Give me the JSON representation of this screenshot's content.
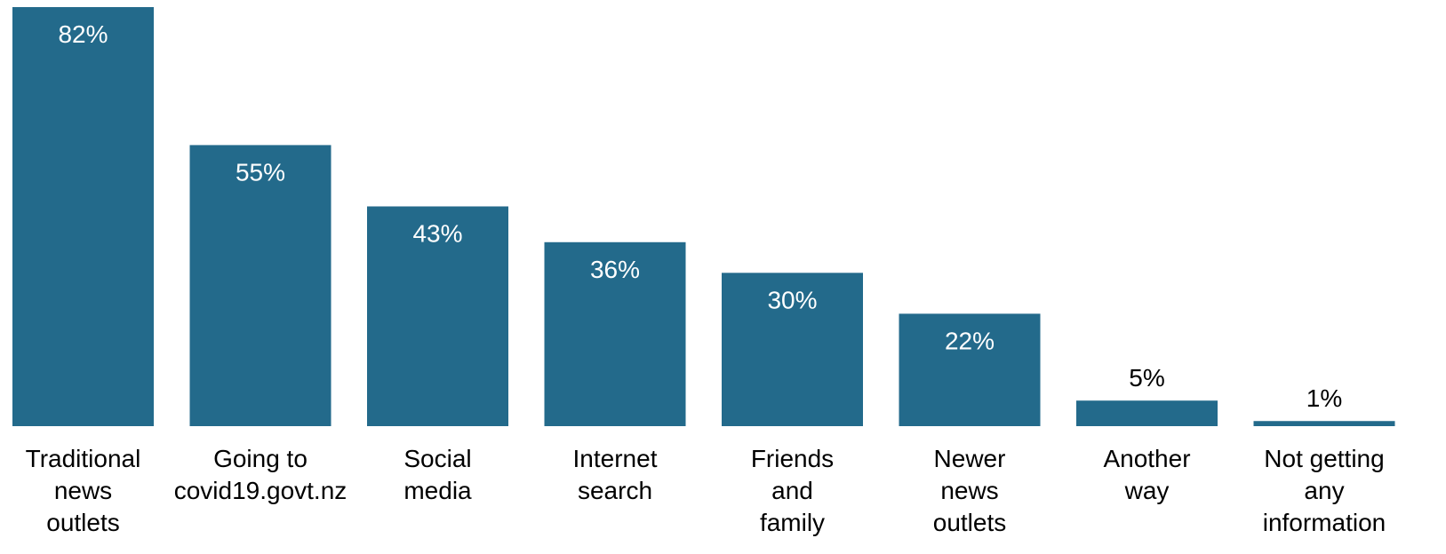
{
  "chart_data": {
    "type": "bar",
    "title": "",
    "xlabel": "",
    "ylabel": "",
    "ylim": [
      0,
      82
    ],
    "grid": false,
    "legend": "none",
    "bar_color": "#236a8b",
    "inside_label_color": "#ffffff",
    "outside_label_color": "#000000",
    "categories": [
      [
        "Traditional",
        "news",
        "outlets"
      ],
      [
        "Going to",
        "covid19.govt.nz"
      ],
      [
        "Social",
        "media"
      ],
      [
        "Internet",
        "search"
      ],
      [
        "Friends",
        "and",
        "family"
      ],
      [
        "Newer",
        "news",
        "outlets"
      ],
      [
        "Another",
        "way"
      ],
      [
        "Not getting",
        "any",
        "information"
      ]
    ],
    "values": [
      82,
      55,
      43,
      36,
      30,
      22,
      5,
      1
    ],
    "data_labels": [
      "82%",
      "55%",
      "43%",
      "36%",
      "30%",
      "22%",
      "5%",
      "1%"
    ]
  }
}
